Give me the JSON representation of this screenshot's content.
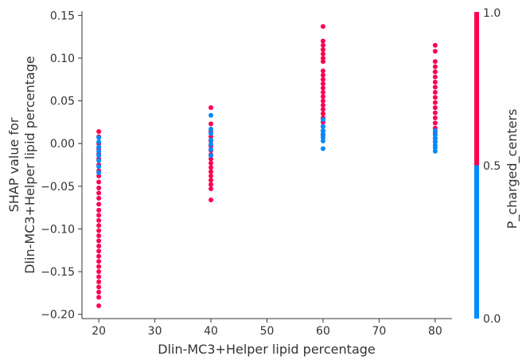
{
  "chart_data": {
    "type": "scatter",
    "xlabel": "Dlin-MC3+Helper lipid percentage",
    "ylabel_lines": [
      "SHAP value for",
      "Dlin-MC3+Helper lipid percentage"
    ],
    "xlim": [
      17,
      83
    ],
    "ylim": [
      -0.205,
      0.155
    ],
    "xticks": [
      20,
      30,
      40,
      50,
      60,
      70,
      80
    ],
    "yticks": [
      -0.2,
      -0.15,
      -0.1,
      -0.05,
      0.0,
      0.05,
      0.1,
      0.15
    ],
    "xtick_labels": [
      "20",
      "30",
      "40",
      "50",
      "60",
      "70",
      "80"
    ],
    "ytick_labels": [
      "−0.20",
      "−0.15",
      "−0.10",
      "−0.05",
      "0.00",
      "0.05",
      "0.10",
      "0.15"
    ],
    "grid": false,
    "colorbar": {
      "label": "P_charged_centers",
      "min_label": "0.0",
      "mid_label": "0.5",
      "max_label": "1.0",
      "high_color": "#ff0051",
      "low_color": "#008bfb"
    },
    "series": [
      {
        "x": 20,
        "color_value": 1,
        "values": [
          0.014,
          0.008,
          0.0,
          -0.006,
          -0.012,
          -0.018,
          -0.025,
          -0.032,
          -0.038,
          -0.045,
          -0.052,
          -0.058,
          -0.064,
          -0.071,
          -0.078,
          -0.084,
          -0.09,
          -0.096,
          -0.102,
          -0.108,
          -0.114,
          -0.12,
          -0.126,
          -0.132,
          -0.138,
          -0.144,
          -0.15,
          -0.156,
          -0.162,
          -0.168,
          -0.174,
          -0.18,
          -0.19
        ]
      },
      {
        "x": 20,
        "color_value": 0,
        "values": [
          0.007,
          0.002,
          -0.004,
          -0.009,
          -0.014,
          -0.02,
          -0.027,
          -0.034
        ]
      },
      {
        "x": 40,
        "color_value": 1,
        "values": [
          0.042,
          0.023,
          0.014,
          0.008,
          0.003,
          -0.003,
          -0.008,
          -0.013,
          -0.018,
          -0.023,
          -0.028,
          -0.033,
          -0.038,
          -0.043,
          -0.048,
          -0.053,
          -0.066
        ]
      },
      {
        "x": 40,
        "color_value": 0,
        "values": [
          0.033,
          0.017,
          0.012,
          0.004,
          -0.001,
          -0.007,
          -0.014
        ]
      },
      {
        "x": 60,
        "color_value": 1,
        "values": [
          0.137,
          0.12,
          0.115,
          0.11,
          0.105,
          0.1,
          0.096,
          0.085,
          0.08,
          0.075,
          0.07,
          0.065,
          0.06,
          0.055,
          0.05,
          0.045,
          0.04,
          0.035,
          0.03,
          0.025,
          0.02,
          0.015,
          0.01
        ]
      },
      {
        "x": 60,
        "color_value": 0,
        "values": [
          0.028,
          0.02,
          0.015,
          0.011,
          0.007,
          0.003,
          -0.006
        ]
      },
      {
        "x": 80,
        "color_value": 1,
        "values": [
          0.115,
          0.108,
          0.096,
          0.09,
          0.084,
          0.078,
          0.072,
          0.066,
          0.06,
          0.054,
          0.048,
          0.042,
          0.036,
          0.03,
          0.024,
          0.018,
          0.012,
          0.006,
          0.002
        ]
      },
      {
        "x": 80,
        "color_value": 0,
        "values": [
          0.015,
          0.01,
          0.006,
          0.002,
          -0.002,
          -0.005,
          -0.009
        ]
      }
    ]
  }
}
